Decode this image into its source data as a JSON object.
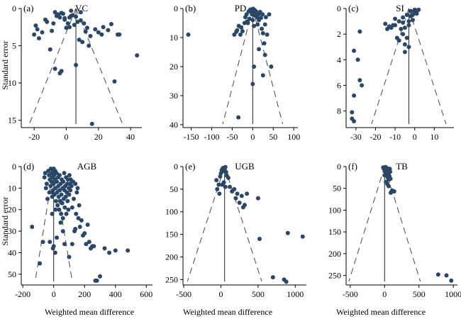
{
  "figure": {
    "ylabel": "Standard error",
    "xlabel": "Weighted mean difference"
  },
  "colors": {
    "point": "#2a4768",
    "axis": "#000000",
    "funnel": "#555555"
  },
  "chart_data": [
    {
      "type": "scatter",
      "panel_label": "(a)",
      "title": "VC",
      "xlim": [
        -28,
        47
      ],
      "ylim": [
        0,
        16
      ],
      "y_inverted": true,
      "xticks": [
        -20,
        0,
        20,
        40
      ],
      "yticks": [
        0,
        5,
        10,
        15
      ],
      "pooled_estimate": 6,
      "funnel_width_at_base": 29,
      "points": [
        [
          -20,
          3.5
        ],
        [
          -19,
          2.3
        ],
        [
          -18,
          2.8
        ],
        [
          -17,
          4
        ],
        [
          -15,
          3.2
        ],
        [
          -13,
          1.5
        ],
        [
          -12,
          1.8
        ],
        [
          -10,
          5.5
        ],
        [
          -9,
          3
        ],
        [
          -8,
          2
        ],
        [
          -7,
          0.5
        ],
        [
          -6,
          1
        ],
        [
          -5,
          0.8
        ],
        [
          -4,
          1.2
        ],
        [
          -3,
          0.6
        ],
        [
          -2,
          0.7
        ],
        [
          -1,
          1.5
        ],
        [
          0,
          2.6
        ],
        [
          1,
          2
        ],
        [
          2,
          2.5
        ],
        [
          3,
          1
        ],
        [
          4,
          0.9
        ],
        [
          5,
          2.2
        ],
        [
          6,
          1.1
        ],
        [
          7,
          1.8
        ],
        [
          8,
          4.2
        ],
        [
          9,
          1.6
        ],
        [
          10,
          4.5
        ],
        [
          11,
          2
        ],
        [
          12,
          3.1
        ],
        [
          13,
          2.6
        ],
        [
          14,
          5
        ],
        [
          15,
          3.7
        ],
        [
          18,
          2.8
        ],
        [
          20,
          3.2
        ],
        [
          22,
          3.5
        ],
        [
          23,
          2.5
        ],
        [
          26,
          2.9
        ],
        [
          28,
          2.1
        ],
        [
          32,
          3.5
        ],
        [
          33,
          3.5
        ],
        [
          44,
          6.3
        ],
        [
          -7,
          8.1
        ],
        [
          -4,
          8.7
        ],
        [
          -3,
          8.4
        ],
        [
          6,
          7.6
        ],
        [
          30,
          9.8
        ],
        [
          16,
          15.5
        ],
        [
          -1,
          1.3
        ],
        [
          2,
          1.2
        ],
        [
          9,
          0.5
        ],
        [
          3,
          0.3
        ]
      ]
    },
    {
      "type": "scatter",
      "panel_label": "(b)",
      "title": "PD",
      "xlim": [
        -170,
        110
      ],
      "ylim": [
        0,
        41
      ],
      "y_inverted": true,
      "xticks": [
        -150,
        -100,
        -50,
        0,
        50,
        100
      ],
      "yticks": [
        0,
        10,
        20,
        30,
        40
      ],
      "pooled_estimate": 0,
      "funnel_width_at_base": 73,
      "points": [
        [
          -157,
          9
        ],
        [
          -45,
          9
        ],
        [
          -40,
          8
        ],
        [
          -38,
          7.5
        ],
        [
          -34,
          6
        ],
        [
          -30,
          9
        ],
        [
          -28,
          6.5
        ],
        [
          -25,
          7.8
        ],
        [
          -20,
          5
        ],
        [
          -18,
          3
        ],
        [
          -15,
          2
        ],
        [
          -12,
          5
        ],
        [
          -10,
          1
        ],
        [
          -8,
          3.5
        ],
        [
          -5,
          1
        ],
        [
          -3,
          0.5
        ],
        [
          -2,
          2
        ],
        [
          0,
          4
        ],
        [
          2,
          1.5
        ],
        [
          3,
          6
        ],
        [
          5,
          0.6
        ],
        [
          6,
          2.5
        ],
        [
          8,
          1
        ],
        [
          10,
          3
        ],
        [
          12,
          5.5
        ],
        [
          14,
          2
        ],
        [
          15,
          4
        ],
        [
          18,
          1.2
        ],
        [
          20,
          3.2
        ],
        [
          22,
          7
        ],
        [
          24,
          2
        ],
        [
          25,
          8.5
        ],
        [
          28,
          12
        ],
        [
          30,
          5.5
        ],
        [
          30,
          16
        ],
        [
          25,
          23
        ],
        [
          32,
          3
        ],
        [
          35,
          9
        ],
        [
          40,
          2
        ],
        [
          45,
          20
        ],
        [
          3,
          20
        ],
        [
          0,
          26
        ],
        [
          -35,
          37.5
        ],
        [
          15,
          14
        ],
        [
          -1,
          0.2
        ],
        [
          1,
          0.1
        ],
        [
          -6,
          0.4
        ],
        [
          4,
          0.5
        ],
        [
          9,
          1.8
        ],
        [
          -14,
          4.5
        ]
      ]
    },
    {
      "type": "scatter",
      "panel_label": "(c)",
      "title": "SI",
      "xlim": [
        -35,
        20
      ],
      "ylim": [
        0,
        9.3
      ],
      "y_inverted": true,
      "xticks": [
        -30,
        -20,
        -10,
        0,
        10
      ],
      "yticks": [
        0,
        2,
        4,
        6,
        8
      ],
      "pooled_estimate": -3,
      "funnel_width_at_base": 19,
      "points": [
        [
          -32,
          8.1
        ],
        [
          -32,
          8.6
        ],
        [
          -31,
          8.8
        ],
        [
          -31,
          6.8
        ],
        [
          -31,
          3.3
        ],
        [
          -29,
          4
        ],
        [
          -28,
          1.8
        ],
        [
          -28,
          5.6
        ],
        [
          -27,
          6
        ],
        [
          -15,
          1.2
        ],
        [
          -14,
          1.6
        ],
        [
          -13,
          1.4
        ],
        [
          -12,
          1.5
        ],
        [
          -11,
          1.3
        ],
        [
          -10,
          0.8
        ],
        [
          -9,
          2.3
        ],
        [
          -8,
          1
        ],
        [
          -7,
          1.6
        ],
        [
          -6,
          0.7
        ],
        [
          -6,
          2
        ],
        [
          -5,
          2.8
        ],
        [
          -5,
          3.4
        ],
        [
          -4,
          2.3
        ],
        [
          -4,
          0.5
        ],
        [
          -3,
          1
        ],
        [
          -3,
          3
        ],
        [
          -2,
          0.2
        ],
        [
          -2,
          0.6
        ],
        [
          -1,
          0.9
        ],
        [
          0,
          0.1
        ],
        [
          0,
          0.3
        ],
        [
          1,
          0.2
        ],
        [
          1,
          0.4
        ],
        [
          2,
          0.1
        ],
        [
          -8,
          2.5
        ],
        [
          -5,
          1.5
        ],
        [
          -3,
          1.3
        ],
        [
          -1,
          0.5
        ],
        [
          -6,
          1.1
        ],
        [
          -10,
          1.3
        ]
      ]
    },
    {
      "type": "scatter",
      "panel_label": "(d)",
      "title": "AGB",
      "xlim": [
        -210,
        640
      ],
      "ylim": [
        0,
        55
      ],
      "y_inverted": true,
      "xticks": [
        -200,
        0,
        200,
        400,
        600
      ],
      "yticks": [
        0,
        10,
        20,
        30,
        40,
        50
      ],
      "pooled_estimate": 0,
      "funnel_width_at_base": 120,
      "points": [
        [
          -140,
          28
        ],
        [
          -90,
          45
        ],
        [
          -70,
          35
        ],
        [
          -60,
          5
        ],
        [
          -55,
          3
        ],
        [
          -50,
          10
        ],
        [
          -45,
          8
        ],
        [
          -40,
          15
        ],
        [
          -35,
          2
        ],
        [
          -30,
          4
        ],
        [
          -28,
          12
        ],
        [
          -25,
          6
        ],
        [
          -20,
          9
        ],
        [
          -18,
          1
        ],
        [
          -15,
          7
        ],
        [
          -12,
          3
        ],
        [
          -10,
          14
        ],
        [
          -8,
          5
        ],
        [
          -5,
          11
        ],
        [
          -3,
          2
        ],
        [
          0,
          8
        ],
        [
          0,
          1
        ],
        [
          2,
          4
        ],
        [
          5,
          13
        ],
        [
          8,
          6
        ],
        [
          10,
          2
        ],
        [
          12,
          10
        ],
        [
          15,
          16
        ],
        [
          18,
          3
        ],
        [
          20,
          7
        ],
        [
          22,
          12
        ],
        [
          25,
          18
        ],
        [
          28,
          5
        ],
        [
          30,
          9
        ],
        [
          32,
          14
        ],
        [
          35,
          20
        ],
        [
          38,
          4
        ],
        [
          40,
          11
        ],
        [
          42,
          16
        ],
        [
          45,
          8
        ],
        [
          48,
          22
        ],
        [
          50,
          13
        ],
        [
          52,
          6
        ],
        [
          55,
          17
        ],
        [
          58,
          10
        ],
        [
          60,
          24
        ],
        [
          62,
          7
        ],
        [
          65,
          15
        ],
        [
          68,
          3
        ],
        [
          70,
          11
        ],
        [
          72,
          19
        ],
        [
          75,
          9
        ],
        [
          78,
          14
        ],
        [
          80,
          5
        ],
        [
          82,
          22
        ],
        [
          85,
          12
        ],
        [
          88,
          8
        ],
        [
          90,
          16
        ],
        [
          92,
          6
        ],
        [
          95,
          20
        ],
        [
          98,
          10
        ],
        [
          100,
          13
        ],
        [
          102,
          4
        ],
        [
          105,
          8
        ],
        [
          108,
          11
        ],
        [
          110,
          6
        ],
        [
          115,
          9
        ],
        [
          120,
          19
        ],
        [
          125,
          7
        ],
        [
          130,
          15
        ],
        [
          135,
          30
        ],
        [
          140,
          8
        ],
        [
          145,
          22
        ],
        [
          150,
          12
        ],
        [
          155,
          10
        ],
        [
          160,
          24
        ],
        [
          165,
          18
        ],
        [
          170,
          28
        ],
        [
          180,
          25
        ],
        [
          190,
          32
        ],
        [
          200,
          31
        ],
        [
          210,
          36
        ],
        [
          220,
          27
        ],
        [
          230,
          35
        ],
        [
          240,
          38
        ],
        [
          250,
          37
        ],
        [
          260,
          37
        ],
        [
          270,
          53
        ],
        [
          280,
          53
        ],
        [
          300,
          51
        ],
        [
          330,
          38
        ],
        [
          360,
          40
        ],
        [
          400,
          39
        ],
        [
          480,
          39
        ],
        [
          -25,
          35
        ],
        [
          0,
          37
        ],
        [
          10,
          40
        ],
        [
          20,
          33
        ],
        [
          100,
          42
        ],
        [
          140,
          29
        ],
        [
          60,
          30
        ],
        [
          -10,
          22
        ],
        [
          -5,
          38
        ],
        [
          5,
          2
        ],
        [
          -8,
          12
        ],
        [
          12,
          20
        ],
        [
          45,
          26
        ],
        [
          70,
          36
        ],
        [
          120,
          36
        ]
      ]
    },
    {
      "type": "scatter",
      "panel_label": "(e)",
      "title": "UGB",
      "xlim": [
        -510,
        1150
      ],
      "ylim": [
        0,
        262
      ],
      "y_inverted": true,
      "xticks": [
        -500,
        0,
        500,
        1000
      ],
      "yticks": [
        0,
        50,
        100,
        150,
        200,
        250
      ],
      "pooled_estimate": 50,
      "funnel_width_at_base": 500,
      "points": [
        [
          -60,
          30
        ],
        [
          -50,
          50
        ],
        [
          -30,
          40
        ],
        [
          -20,
          60
        ],
        [
          -10,
          22
        ],
        [
          0,
          15
        ],
        [
          10,
          8
        ],
        [
          20,
          5
        ],
        [
          30,
          3
        ],
        [
          40,
          10
        ],
        [
          50,
          6
        ],
        [
          60,
          1
        ],
        [
          70,
          12
        ],
        [
          80,
          20
        ],
        [
          100,
          25
        ],
        [
          120,
          45
        ],
        [
          150,
          55
        ],
        [
          180,
          50
        ],
        [
          200,
          70
        ],
        [
          220,
          60
        ],
        [
          250,
          80
        ],
        [
          280,
          65
        ],
        [
          300,
          90
        ],
        [
          320,
          85
        ],
        [
          350,
          60
        ],
        [
          500,
          70
        ],
        [
          520,
          160
        ],
        [
          700,
          245
        ],
        [
          850,
          250
        ],
        [
          880,
          255
        ],
        [
          900,
          147
        ],
        [
          1100,
          155
        ],
        [
          15,
          40
        ],
        [
          40,
          35
        ],
        [
          60,
          45
        ]
      ]
    },
    {
      "type": "scatter",
      "panel_label": "(f)",
      "title": "TB",
      "xlim": [
        -560,
        1060
      ],
      "ylim": [
        0,
        272
      ],
      "y_inverted": true,
      "xticks": [
        -500,
        0,
        500,
        1000
      ],
      "yticks": [
        0,
        50,
        100,
        150,
        200,
        250
      ],
      "pooled_estimate": 0,
      "funnel_width_at_base": 520,
      "points": [
        [
          -20,
          2
        ],
        [
          -10,
          5
        ],
        [
          0,
          8
        ],
        [
          5,
          3
        ],
        [
          10,
          12
        ],
        [
          15,
          1
        ],
        [
          20,
          15
        ],
        [
          25,
          6
        ],
        [
          30,
          20
        ],
        [
          35,
          10
        ],
        [
          40,
          4
        ],
        [
          45,
          25
        ],
        [
          50,
          18
        ],
        [
          55,
          9
        ],
        [
          60,
          30
        ],
        [
          65,
          14
        ],
        [
          70,
          22
        ],
        [
          75,
          5
        ],
        [
          80,
          12
        ],
        [
          85,
          28
        ],
        [
          90,
          60
        ],
        [
          100,
          58
        ],
        [
          110,
          55
        ],
        [
          140,
          57
        ],
        [
          20,
          35
        ],
        [
          40,
          40
        ],
        [
          780,
          248
        ],
        [
          900,
          250
        ],
        [
          970,
          262
        ],
        [
          0,
          20
        ],
        [
          60,
          45
        ]
      ]
    }
  ]
}
